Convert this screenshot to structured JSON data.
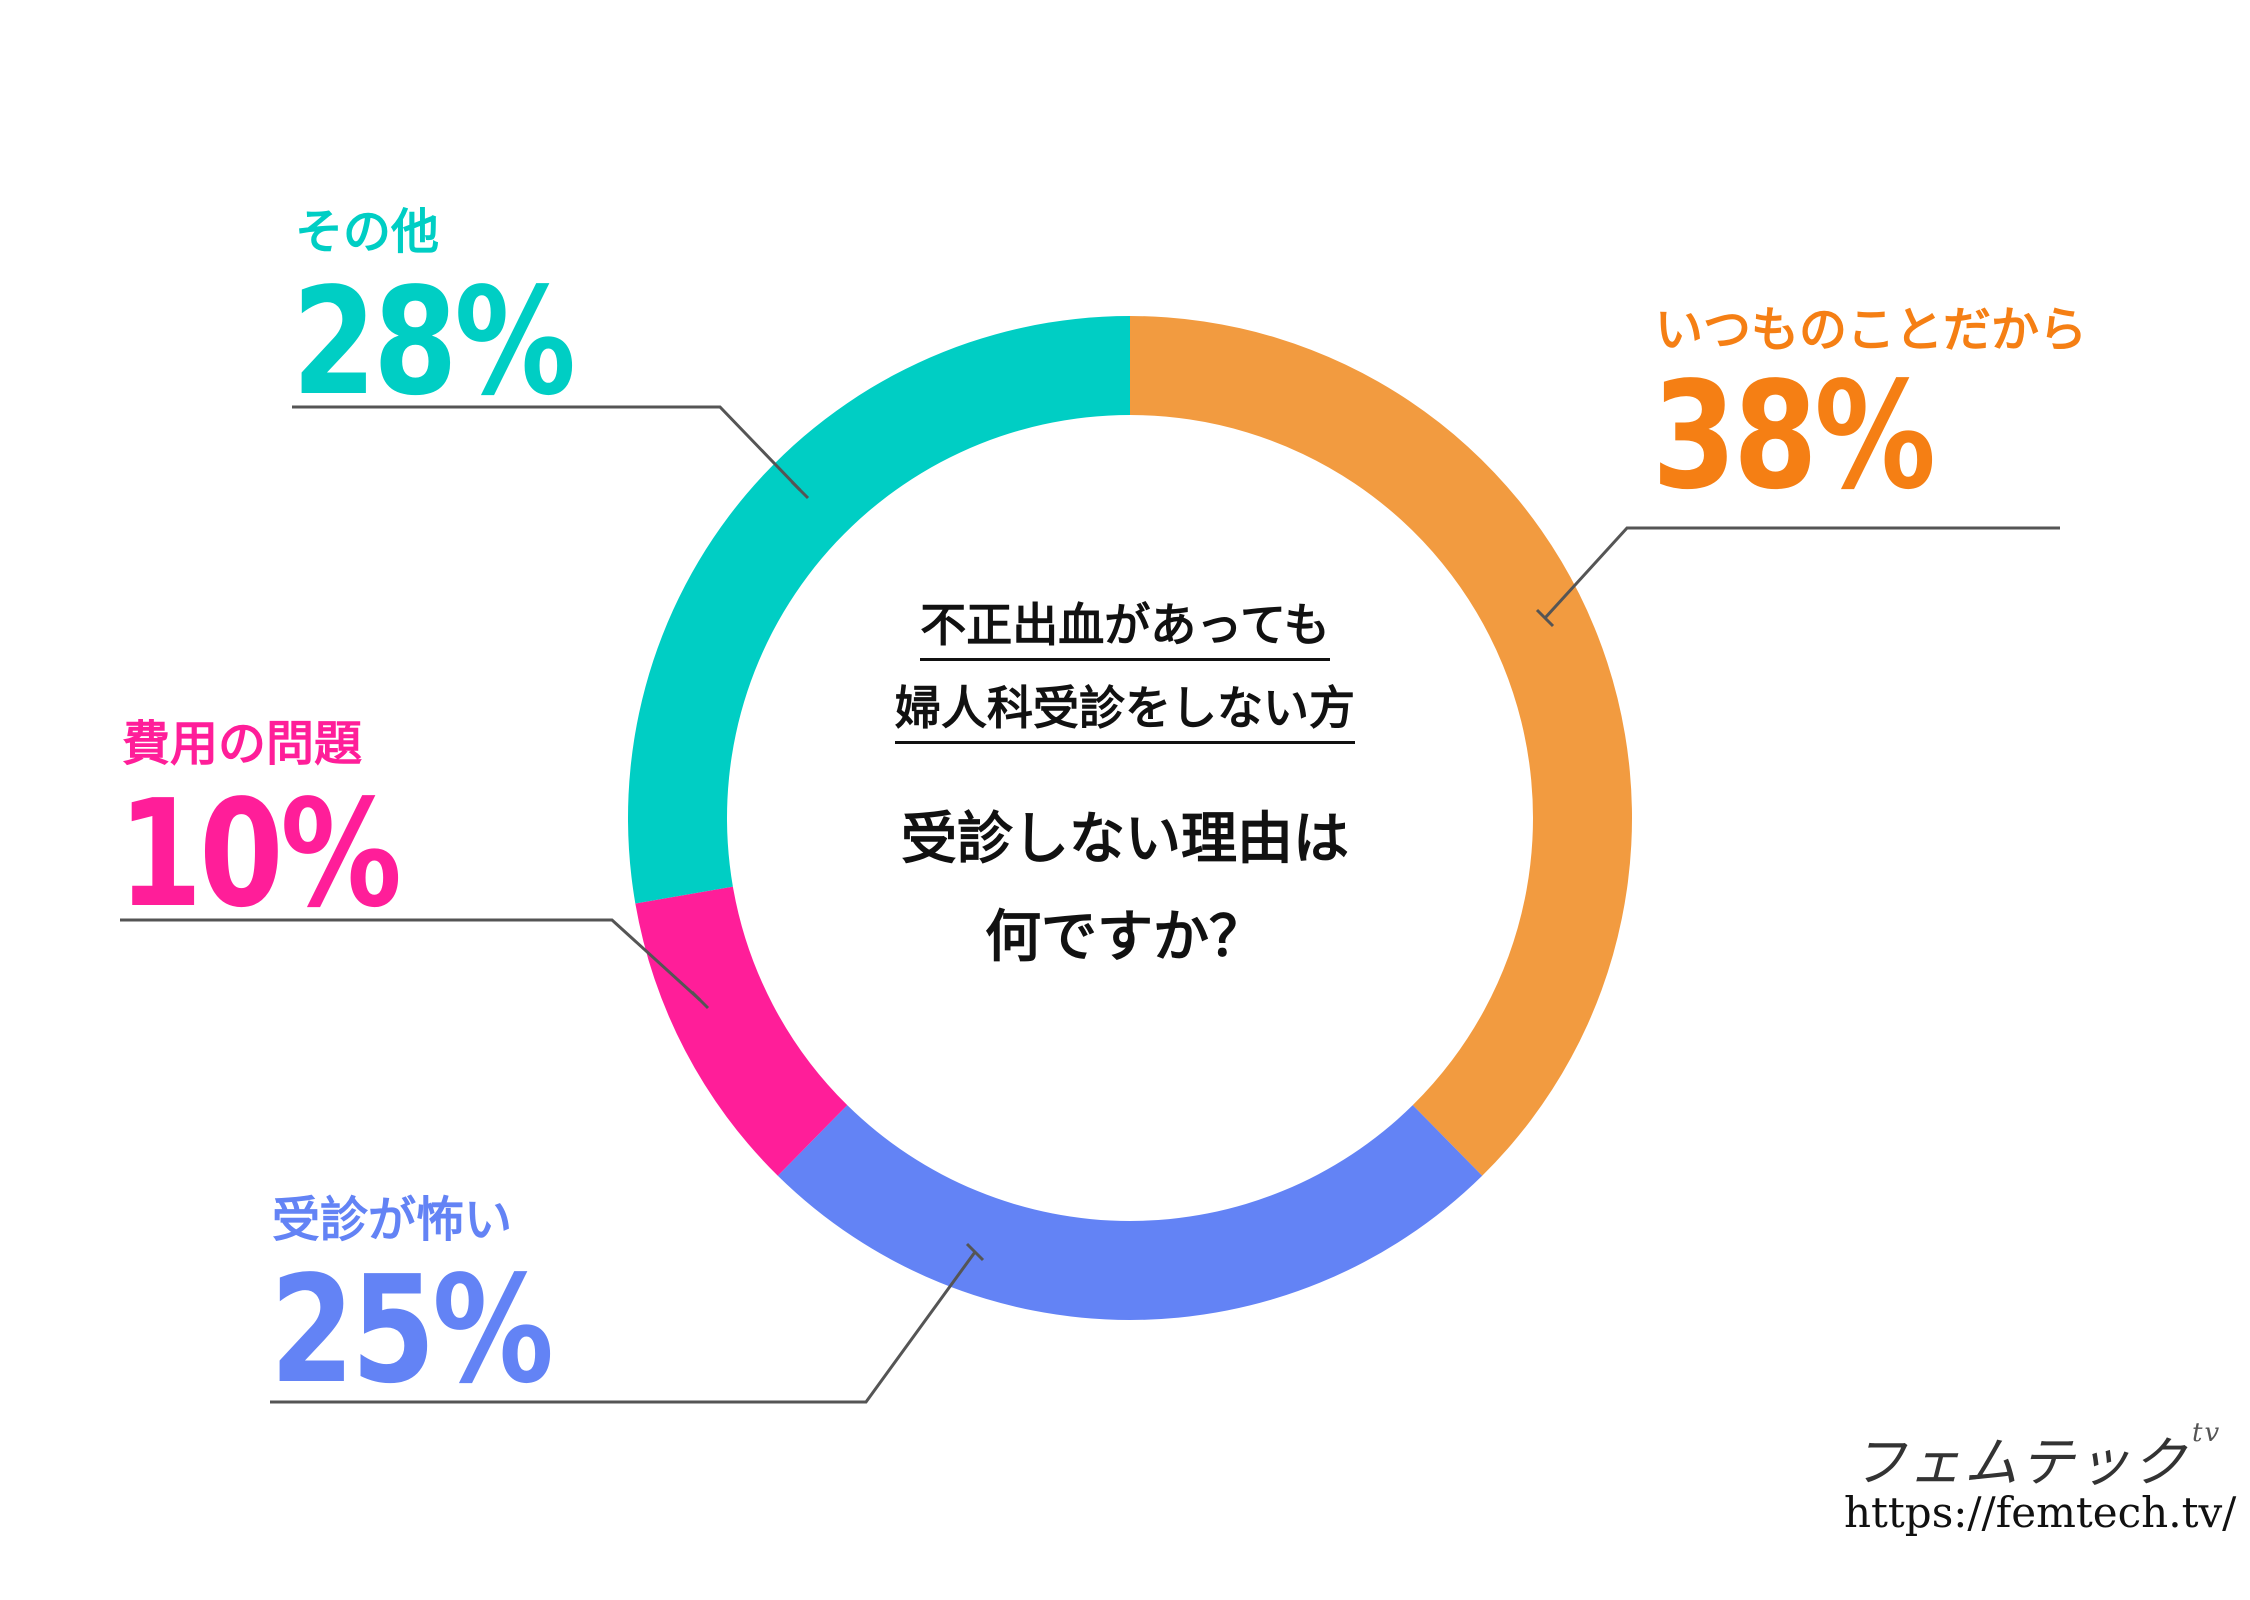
{
  "chart_data": {
    "type": "pie",
    "variant": "donut",
    "title": "受診しない理由は何ですか？",
    "subtitle": "不正出血があっても婦人科受診をしない方",
    "slices": [
      {
        "label": "いつものことだから",
        "value": 38,
        "display": "38%",
        "color": "#F29B40",
        "label_color": "#F57F14"
      },
      {
        "label": "受診が怖い",
        "value": 25,
        "display": "25%",
        "color": "#6383F5",
        "label_color": "#6383F5"
      },
      {
        "label": "費用の問題",
        "value": 10,
        "display": "10%",
        "color": "#FF1E99",
        "label_color": "#FF1E99"
      },
      {
        "label": "その他",
        "value": 28,
        "display": "28%",
        "color": "#00CEC4",
        "label_color": "#00CEC4"
      }
    ],
    "start_angle_deg": 0,
    "direction": "clockwise"
  },
  "center": {
    "subtitle_line1": "不正出血があっても",
    "subtitle_line2": "婦人科受診をしない方",
    "question_line1": "受診しない理由は",
    "question_line2": "何ですか？"
  },
  "footer": {
    "brand": "フェムテック",
    "brand_mark": "tv",
    "url": "https://femtech.tv/"
  },
  "colors": {
    "leader_line": "#555555"
  }
}
